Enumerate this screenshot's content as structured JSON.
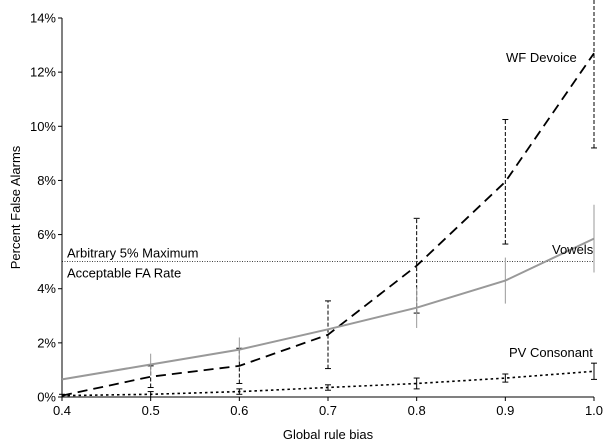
{
  "chart_data": {
    "type": "line",
    "xlabel": "Global rule bias",
    "ylabel": "Percent False Alarms",
    "xlim": [
      0.4,
      1.0
    ],
    "ylim": [
      0,
      14
    ],
    "x_ticks": [
      "0.4",
      "0.5",
      "0.6",
      "0.7",
      "0.8",
      "0.9",
      "1.0"
    ],
    "y_ticks": [
      "0%",
      "2%",
      "4%",
      "6%",
      "8%",
      "10%",
      "12%",
      "14%"
    ],
    "grid": false,
    "series": [
      {
        "name": "WF Devoice",
        "style": "long-dash",
        "color": "#000000",
        "x": [
          0.4,
          0.5,
          0.6,
          0.7,
          0.8,
          0.9,
          1.0
        ],
        "y": [
          0.05,
          0.75,
          1.15,
          2.3,
          4.85,
          7.95,
          12.7
        ],
        "error": [
          0.05,
          0.4,
          0.65,
          1.25,
          1.75,
          2.3,
          3.5
        ]
      },
      {
        "name": "Vowels",
        "style": "solid",
        "color": "#999999",
        "x": [
          0.4,
          0.5,
          0.6,
          0.7,
          0.8,
          0.9,
          1.0
        ],
        "y": [
          0.65,
          1.2,
          1.75,
          2.5,
          3.3,
          4.3,
          5.85
        ],
        "error": [
          0.0,
          0.4,
          0.45,
          0.0,
          0.75,
          0.85,
          1.25
        ]
      },
      {
        "name": "PV Consonant",
        "style": "dotted",
        "color": "#000000",
        "x": [
          0.4,
          0.5,
          0.6,
          0.7,
          0.8,
          0.9,
          1.0
        ],
        "y": [
          0.05,
          0.1,
          0.2,
          0.35,
          0.5,
          0.7,
          0.95
        ],
        "error": [
          0.0,
          0.1,
          0.1,
          0.1,
          0.2,
          0.15,
          0.3
        ]
      }
    ],
    "reference_line": {
      "y": 5,
      "style": "dotted",
      "label_line1": "Arbitrary 5% Maximum",
      "label_line2": "Acceptable FA Rate"
    }
  }
}
